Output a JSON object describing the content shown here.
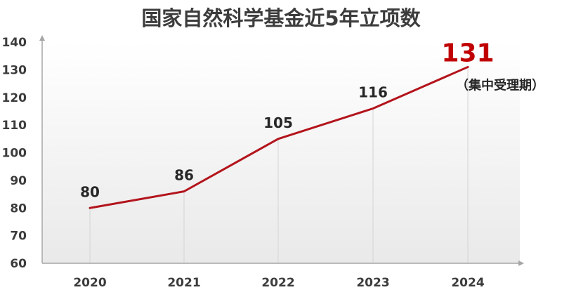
{
  "chart_data": {
    "type": "line",
    "title": "国家自然科学基金近5年立项数",
    "categories": [
      "2020",
      "2021",
      "2022",
      "2023",
      "2024"
    ],
    "values": [
      80,
      86,
      105,
      116,
      131
    ],
    "data_labels": [
      "80",
      "86",
      "105",
      "116",
      "131"
    ],
    "highlight_note": "（集中受理期）",
    "ylim": [
      60,
      140
    ],
    "yticks": [
      "60",
      "70",
      "80",
      "90",
      "100",
      "110",
      "120",
      "130",
      "140"
    ],
    "xlabel": "",
    "ylabel": "",
    "grid": false,
    "line_color": "#b3141c",
    "highlight_color": "#c00000"
  }
}
